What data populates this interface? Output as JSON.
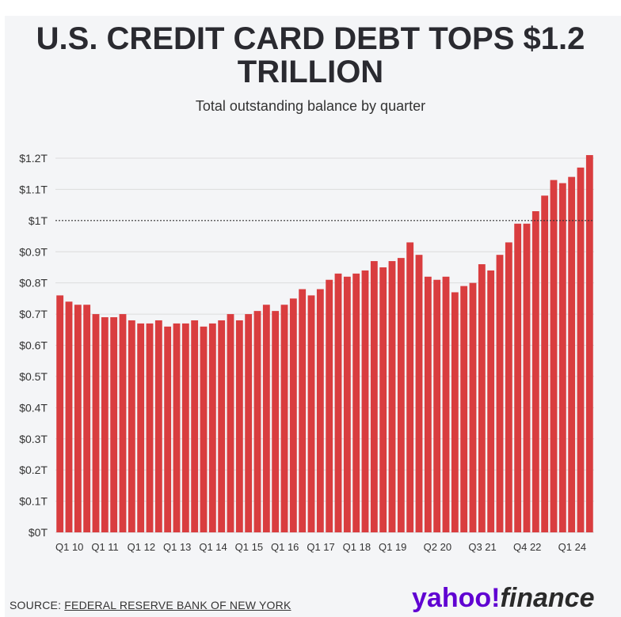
{
  "title": "U.S. CREDIT CARD DEBT TOPS $1.2 TRILLION",
  "subtitle": "Total outstanding balance by quarter",
  "source_prefix": "SOURCE: ",
  "source_name": "FEDERAL RESERVE BANK OF NEW YORK",
  "logo_text": "yahoo!",
  "logo_finance": "finance",
  "colors": {
    "bar": "#d93d3f",
    "grid": "#dcdcdc",
    "reference_line": "#333333",
    "logo": "#6001d2"
  },
  "chart_data": {
    "type": "bar",
    "title": "U.S. CREDIT CARD DEBT TOPS $1.2 TRILLION",
    "subtitle": "Total outstanding balance by quarter",
    "xlabel": "",
    "ylabel": "",
    "units": "trillion USD",
    "ylim": [
      0,
      1.2
    ],
    "grid": true,
    "reference_line": 1.0,
    "y_ticks": [
      "$0T",
      "$0.1T",
      "$0.2T",
      "$0.3T",
      "$0.4T",
      "$0.5T",
      "$0.6T",
      "$0.7T",
      "$0.8T",
      "$0.9T",
      "$1T",
      "$1.1T",
      "$1.2T"
    ],
    "x_tick_labels": [
      "Q1 10",
      "Q1 11",
      "Q1 12",
      "Q1 13",
      "Q1 14",
      "Q1 15",
      "Q1 16",
      "Q1 17",
      "Q1 18",
      "Q1 19",
      "Q2 20",
      "Q3 21",
      "Q4 22",
      "Q1 24"
    ],
    "x_tick_label_indices": [
      0,
      4,
      8,
      12,
      16,
      20,
      24,
      28,
      32,
      36,
      41,
      46,
      51,
      56
    ],
    "categories": [
      "Q1 10",
      "Q2 10",
      "Q3 10",
      "Q4 10",
      "Q1 11",
      "Q2 11",
      "Q3 11",
      "Q4 11",
      "Q1 12",
      "Q2 12",
      "Q3 12",
      "Q4 12",
      "Q1 13",
      "Q2 13",
      "Q3 13",
      "Q4 13",
      "Q1 14",
      "Q2 14",
      "Q3 14",
      "Q4 14",
      "Q1 15",
      "Q2 15",
      "Q3 15",
      "Q4 15",
      "Q1 16",
      "Q2 16",
      "Q3 16",
      "Q4 16",
      "Q1 17",
      "Q2 17",
      "Q3 17",
      "Q4 17",
      "Q1 18",
      "Q2 18",
      "Q3 18",
      "Q4 18",
      "Q1 19",
      "Q2 19",
      "Q3 19",
      "Q4 19",
      "Q1 20",
      "Q2 20",
      "Q3 20",
      "Q4 20",
      "Q1 21",
      "Q2 21",
      "Q3 21",
      "Q4 21",
      "Q1 22",
      "Q2 22",
      "Q3 22",
      "Q4 22",
      "Q1 23",
      "Q2 23",
      "Q3 23",
      "Q4 23",
      "Q1 24",
      "Q2 24",
      "Q3 24",
      "Q4 24"
    ],
    "values": [
      0.76,
      0.74,
      0.73,
      0.73,
      0.7,
      0.69,
      0.69,
      0.7,
      0.68,
      0.67,
      0.67,
      0.68,
      0.66,
      0.67,
      0.67,
      0.68,
      0.66,
      0.67,
      0.68,
      0.7,
      0.68,
      0.7,
      0.71,
      0.73,
      0.71,
      0.73,
      0.75,
      0.78,
      0.76,
      0.78,
      0.81,
      0.83,
      0.82,
      0.83,
      0.84,
      0.87,
      0.85,
      0.87,
      0.88,
      0.93,
      0.89,
      0.82,
      0.81,
      0.82,
      0.77,
      0.79,
      0.8,
      0.86,
      0.84,
      0.89,
      0.93,
      0.99,
      0.99,
      1.03,
      1.08,
      1.13,
      1.12,
      1.14,
      1.17,
      1.21
    ]
  }
}
